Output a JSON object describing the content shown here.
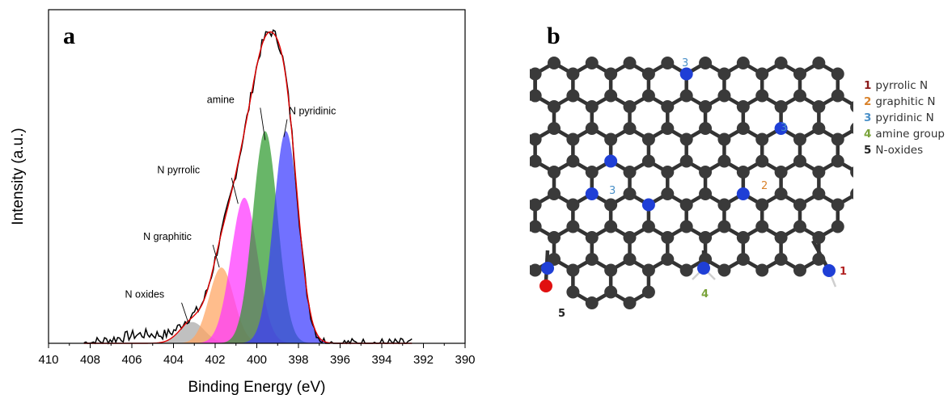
{
  "chart_data": {
    "type": "area",
    "panel_label": "a",
    "xlabel": "Binding Energy (eV)",
    "ylabel": "Intensity (a.u.)",
    "xlim": [
      410,
      390
    ],
    "x_reversed": true,
    "ylim": [
      0,
      1.1
    ],
    "y_ticks_shown": false,
    "xticks": [
      410,
      408,
      406,
      404,
      402,
      400,
      398,
      396,
      394,
      392,
      390
    ],
    "tick_labels": [
      "410",
      "408",
      "406",
      "404",
      "402",
      "400",
      "398",
      "396",
      "394",
      "392",
      "390"
    ],
    "series": [
      {
        "name": "N oxides",
        "center": 403.1,
        "amplitude": 0.07,
        "fwhm": 1.4,
        "color": "#a8a8a8"
      },
      {
        "name": "N graphitic",
        "center": 401.7,
        "amplitude": 0.25,
        "fwhm": 1.4,
        "color": "#ffa460"
      },
      {
        "name": "N pyrrolic",
        "center": 400.6,
        "amplitude": 0.48,
        "fwhm": 1.5,
        "color": "#ff33ff"
      },
      {
        "name": "amine",
        "center": 399.6,
        "amplitude": 0.7,
        "fwhm": 1.4,
        "color": "#2e9a2e"
      },
      {
        "name": "N pyridinic",
        "center": 398.6,
        "amplitude": 0.7,
        "fwhm": 1.4,
        "color": "#3a3aff"
      }
    ],
    "envelope_color": "#e00000",
    "experimental_color": "#000000",
    "experimental_range": [
      408.3,
      392.5
    ],
    "annotations": [
      {
        "text": "N oxides",
        "target_x": 403.3,
        "target_y": 0.07
      },
      {
        "text": "N graphitic",
        "target_x": 401.8,
        "target_y": 0.25
      },
      {
        "text": "N pyrrolic",
        "target_x": 400.9,
        "target_y": 0.46
      },
      {
        "text": "amine",
        "target_x": 399.6,
        "target_y": 0.67
      },
      {
        "text": "N pyridinic",
        "target_x": 398.7,
        "target_y": 0.68
      }
    ]
  },
  "structure": {
    "panel_label": "b",
    "legend": [
      {
        "num": "1",
        "label": "pyrrolic N",
        "color": "#8b1a1a"
      },
      {
        "num": "2",
        "label": "graphitic N",
        "color": "#d9822b"
      },
      {
        "num": "3",
        "label": "pyridinic N",
        "color": "#4a90c8"
      },
      {
        "num": "4",
        "label": "amine group",
        "color": "#7aa33a"
      },
      {
        "num": "5",
        "label": "N-oxides",
        "color": "#222222"
      }
    ],
    "site_labels": [
      {
        "text": "3",
        "color": "#4a90c8"
      },
      {
        "text": "3",
        "color": "#4a90c8"
      },
      {
        "text": "3",
        "color": "#4a90c8"
      },
      {
        "text": "2",
        "color": "#d9822b"
      },
      {
        "text": "1",
        "color": "#b22222"
      },
      {
        "text": "4",
        "color": "#7aa33a"
      },
      {
        "text": "5",
        "color": "#222222"
      }
    ],
    "atom_colors": {
      "carbon": "#3a3a3a",
      "nitrogen": "#1f3fd6",
      "oxygen": "#e01010",
      "hydrogen": "#cfcfcf",
      "bond": "#333333"
    }
  }
}
